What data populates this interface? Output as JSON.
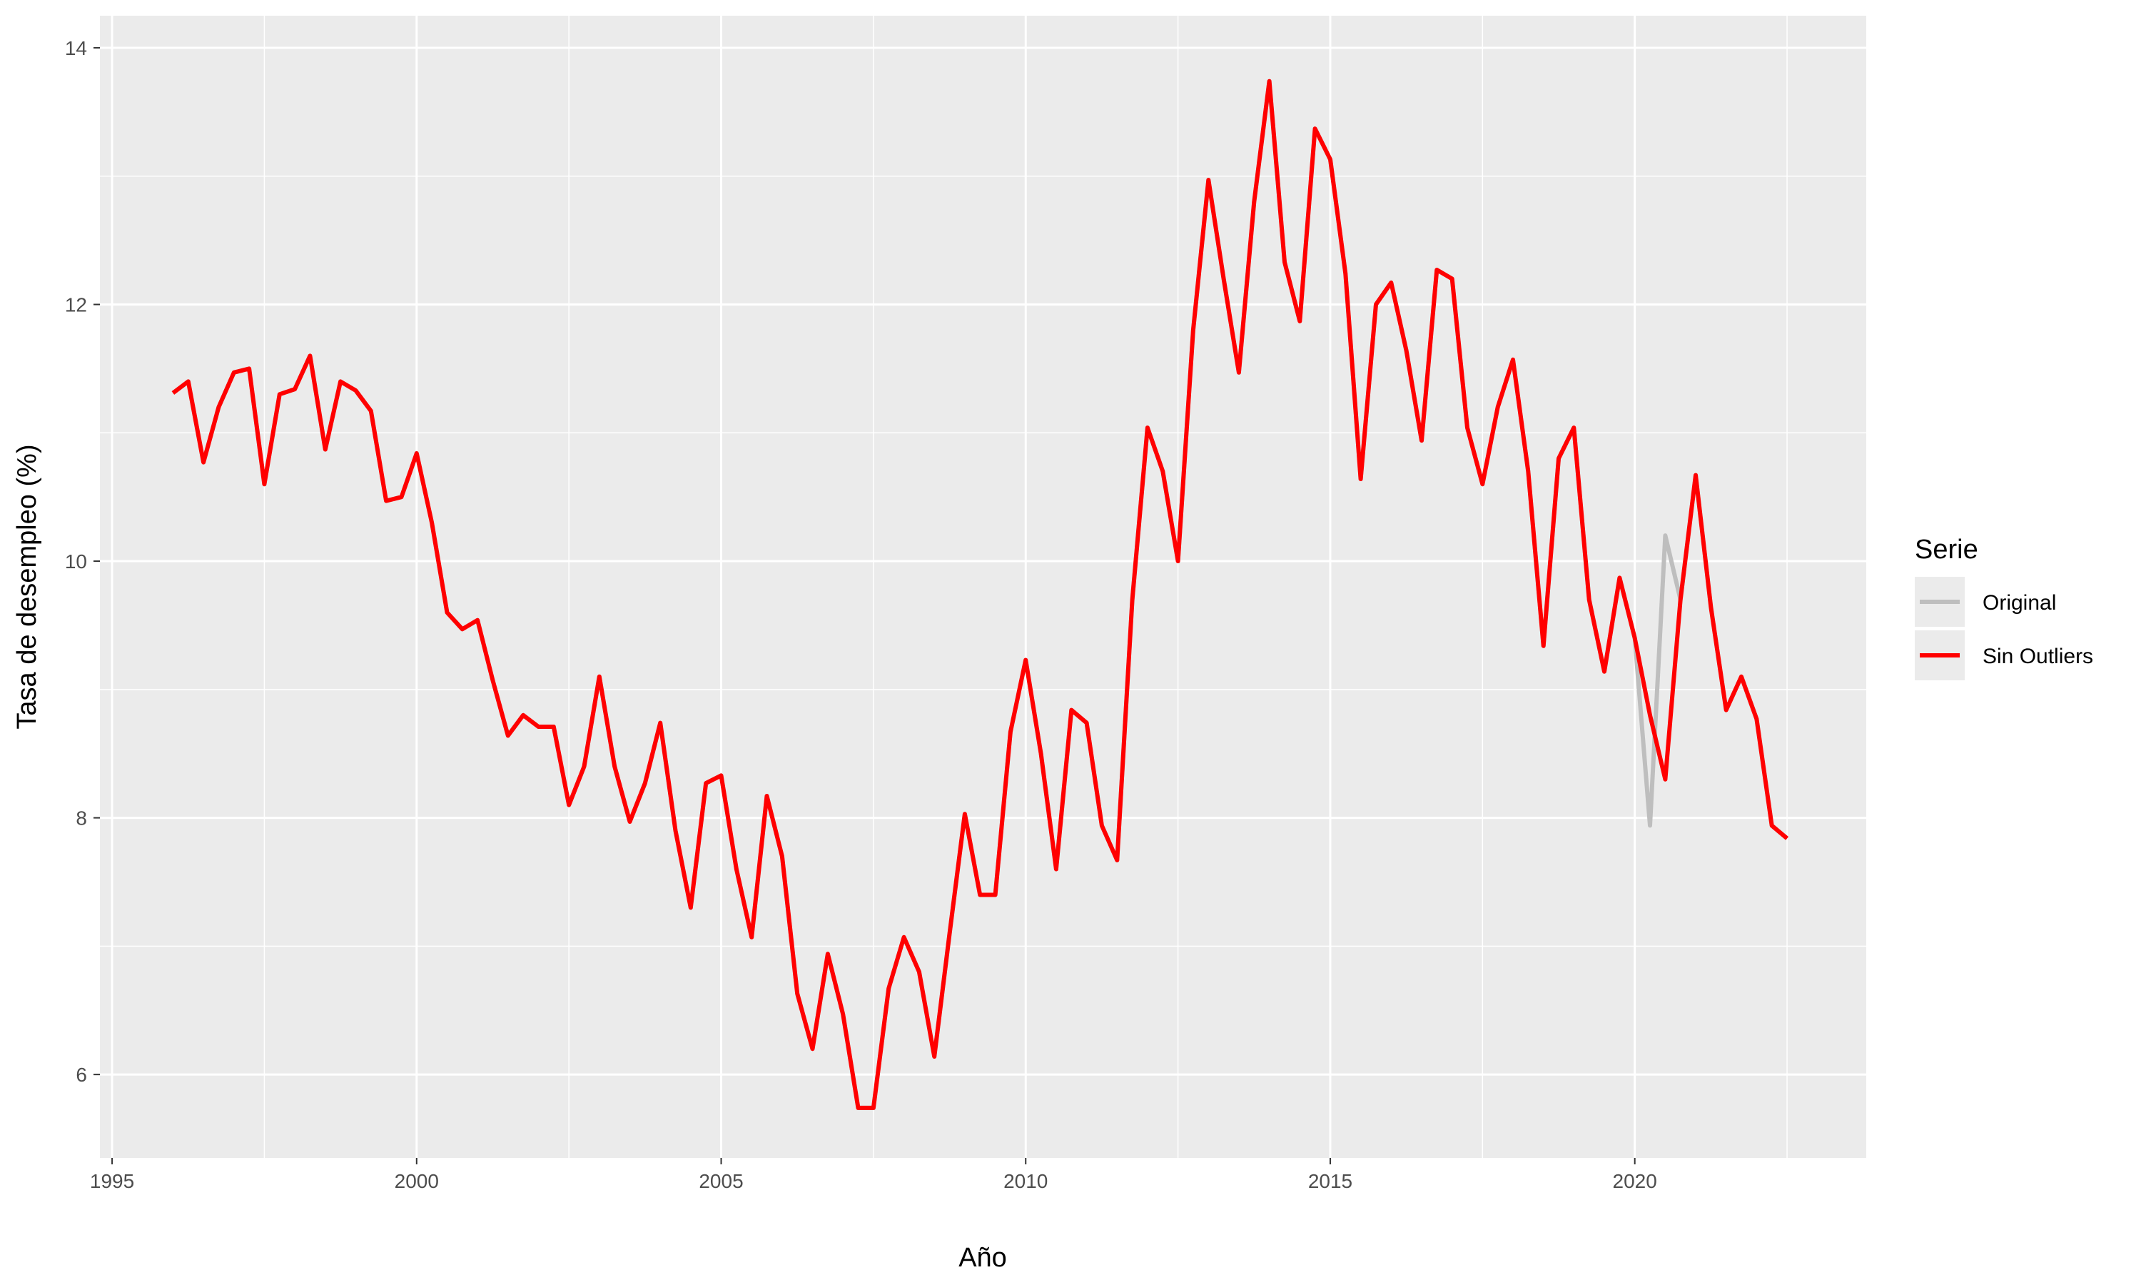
{
  "chart_data": {
    "type": "line",
    "xlabel": "Año",
    "ylabel": "Tasa de desempleo (%)",
    "xlim": [
      1994.8,
      2023.8
    ],
    "ylim": [
      5.35,
      14.25
    ],
    "x_ticks": [
      1995,
      2000,
      2005,
      2010,
      2015,
      2020
    ],
    "y_ticks": [
      6,
      8,
      10,
      12,
      14
    ],
    "grid": true,
    "legend": {
      "title": "Serie",
      "position": "right"
    },
    "x_start": 1996.0,
    "x_step": 0.25,
    "series": [
      {
        "name": "Original",
        "color": "#BEBEBE",
        "values": [
          11.31,
          11.4,
          10.77,
          11.2,
          11.47,
          11.5,
          10.6,
          11.3,
          11.34,
          11.6,
          10.87,
          11.4,
          11.33,
          11.17,
          10.47,
          10.5,
          10.84,
          10.3,
          9.6,
          9.47,
          9.54,
          9.07,
          8.64,
          8.8,
          8.71,
          8.71,
          8.1,
          8.4,
          9.1,
          8.4,
          7.97,
          8.27,
          8.74,
          7.9,
          7.3,
          8.27,
          8.33,
          7.6,
          7.07,
          8.17,
          7.7,
          6.63,
          6.2,
          6.94,
          6.47,
          5.74,
          5.74,
          6.67,
          7.07,
          6.8,
          6.14,
          7.1,
          8.03,
          7.4,
          7.4,
          8.67,
          9.23,
          8.5,
          7.6,
          8.84,
          8.74,
          7.94,
          7.67,
          9.7,
          11.04,
          10.7,
          10.0,
          11.8,
          12.97,
          12.2,
          11.47,
          12.8,
          13.74,
          12.33,
          11.87,
          13.37,
          13.13,
          12.24,
          10.64,
          12.0,
          12.17,
          11.64,
          10.94,
          12.27,
          12.2,
          11.04,
          10.6,
          11.2,
          11.57,
          10.7,
          9.34,
          10.8,
          11.04,
          9.7,
          9.14,
          9.87,
          9.4,
          7.94,
          10.2,
          9.7,
          10.67,
          9.64,
          8.84,
          9.1,
          8.77,
          7.94,
          7.84
        ]
      },
      {
        "name": "Sin Outliers",
        "color": "#FF0000",
        "values": [
          11.31,
          11.4,
          10.77,
          11.2,
          11.47,
          11.5,
          10.6,
          11.3,
          11.34,
          11.6,
          10.87,
          11.4,
          11.33,
          11.17,
          10.47,
          10.5,
          10.84,
          10.3,
          9.6,
          9.47,
          9.54,
          9.07,
          8.64,
          8.8,
          8.71,
          8.71,
          8.1,
          8.4,
          9.1,
          8.4,
          7.97,
          8.27,
          8.74,
          7.9,
          7.3,
          8.27,
          8.33,
          7.6,
          7.07,
          8.17,
          7.7,
          6.63,
          6.2,
          6.94,
          6.47,
          5.74,
          5.74,
          6.67,
          7.07,
          6.8,
          6.14,
          7.1,
          8.03,
          7.4,
          7.4,
          8.67,
          9.23,
          8.5,
          7.6,
          8.84,
          8.74,
          7.94,
          7.67,
          9.7,
          11.04,
          10.7,
          10.0,
          11.8,
          12.97,
          12.2,
          11.47,
          12.8,
          13.74,
          12.33,
          11.87,
          13.37,
          13.13,
          12.24,
          10.64,
          12.0,
          12.17,
          11.64,
          10.94,
          12.27,
          12.2,
          11.04,
          10.6,
          11.2,
          11.57,
          10.7,
          9.34,
          10.8,
          11.04,
          9.7,
          9.14,
          9.87,
          9.4,
          8.8,
          8.3,
          9.7,
          10.67,
          9.64,
          8.84,
          9.1,
          8.77,
          7.94,
          7.84
        ]
      }
    ],
    "panel_background": "#EBEBEB",
    "grid_color": "#FFFFFF"
  }
}
